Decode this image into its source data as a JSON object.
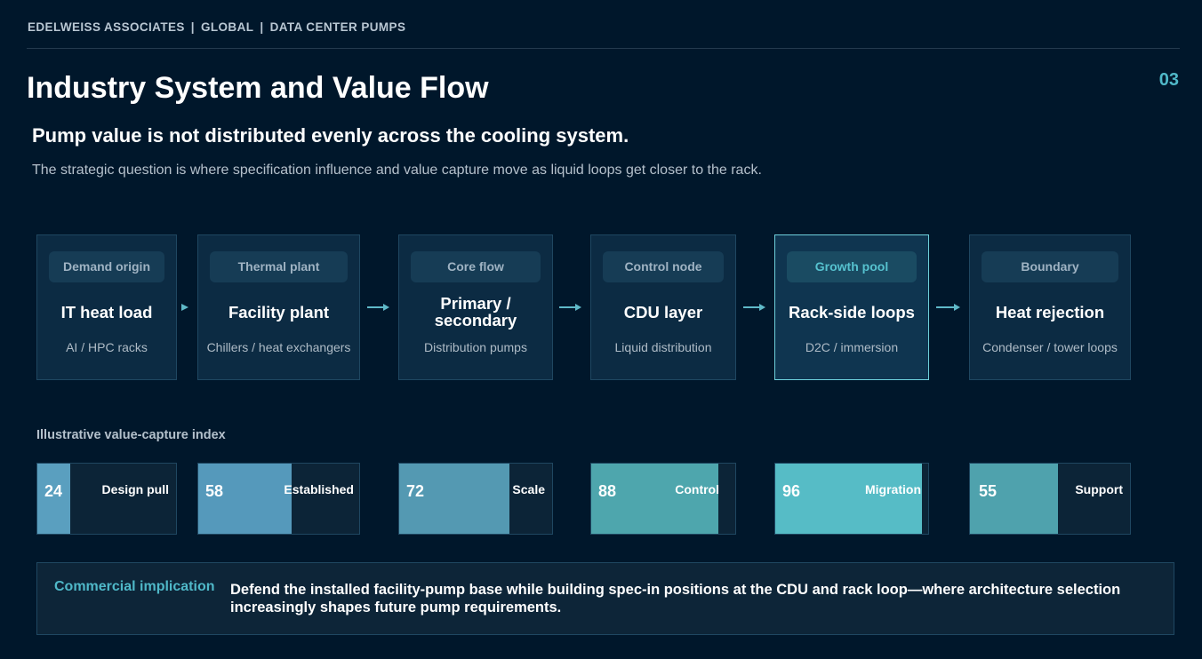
{
  "header": {
    "firm": "EDELWEISS ASSOCIATES",
    "scope": "GLOBAL",
    "topic": "DATA CENTER PUMPS",
    "separator": "|"
  },
  "page": {
    "title": "Industry System and Value Flow",
    "number": "03",
    "subtitle": "Pump value is not distributed evenly across the cooling system.",
    "lede": "The strategic question is where specification influence and value capture move as liquid loops get closer to the rack."
  },
  "flow": {
    "cards": [
      {
        "tag": "Demand origin",
        "title": "IT heat load",
        "sub": "AI / HPC racks",
        "highlight": false
      },
      {
        "tag": "Thermal plant",
        "title": "Facility plant",
        "sub": "Chillers / heat exchangers",
        "highlight": false
      },
      {
        "tag": "Core flow",
        "title": "Primary / secondary",
        "sub": "Distribution pumps",
        "highlight": false
      },
      {
        "tag": "Control node",
        "title": "CDU layer",
        "sub": "Liquid distribution",
        "highlight": false
      },
      {
        "tag": "Growth pool",
        "title": "Rack-side loops",
        "sub": "D2C / immersion",
        "highlight": true
      },
      {
        "tag": "Boundary",
        "title": "Heat rejection",
        "sub": "Condenser / tower loops",
        "highlight": false
      }
    ]
  },
  "index": {
    "label": "Illustrative value-capture index",
    "bars": [
      {
        "value": 24,
        "display": "24",
        "label": "Design pull",
        "color": "#5a9fbf"
      },
      {
        "value": 58,
        "display": "58",
        "label": "Established",
        "color": "#5599bb"
      },
      {
        "value": 72,
        "display": "72",
        "label": "Scale",
        "color": "#5499b2"
      },
      {
        "value": 88,
        "display": "88",
        "label": "Control",
        "color": "#4ea6ad"
      },
      {
        "value": 96,
        "display": "96",
        "label": "Migration",
        "color": "#56bcc6"
      },
      {
        "value": 55,
        "display": "55",
        "label": "Support",
        "color": "#4fa2ad"
      }
    ]
  },
  "implication": {
    "label": "Commercial implication",
    "text": "Defend the installed facility-pump base while building spec-in positions at the CDU and rack loop—where architecture selection increasingly shapes future pump requirements."
  },
  "colors": {
    "background": "#00172b",
    "accent": "#4fb8c8",
    "card": "#0c2b43",
    "highlight_border": "#6fd1dc"
  }
}
